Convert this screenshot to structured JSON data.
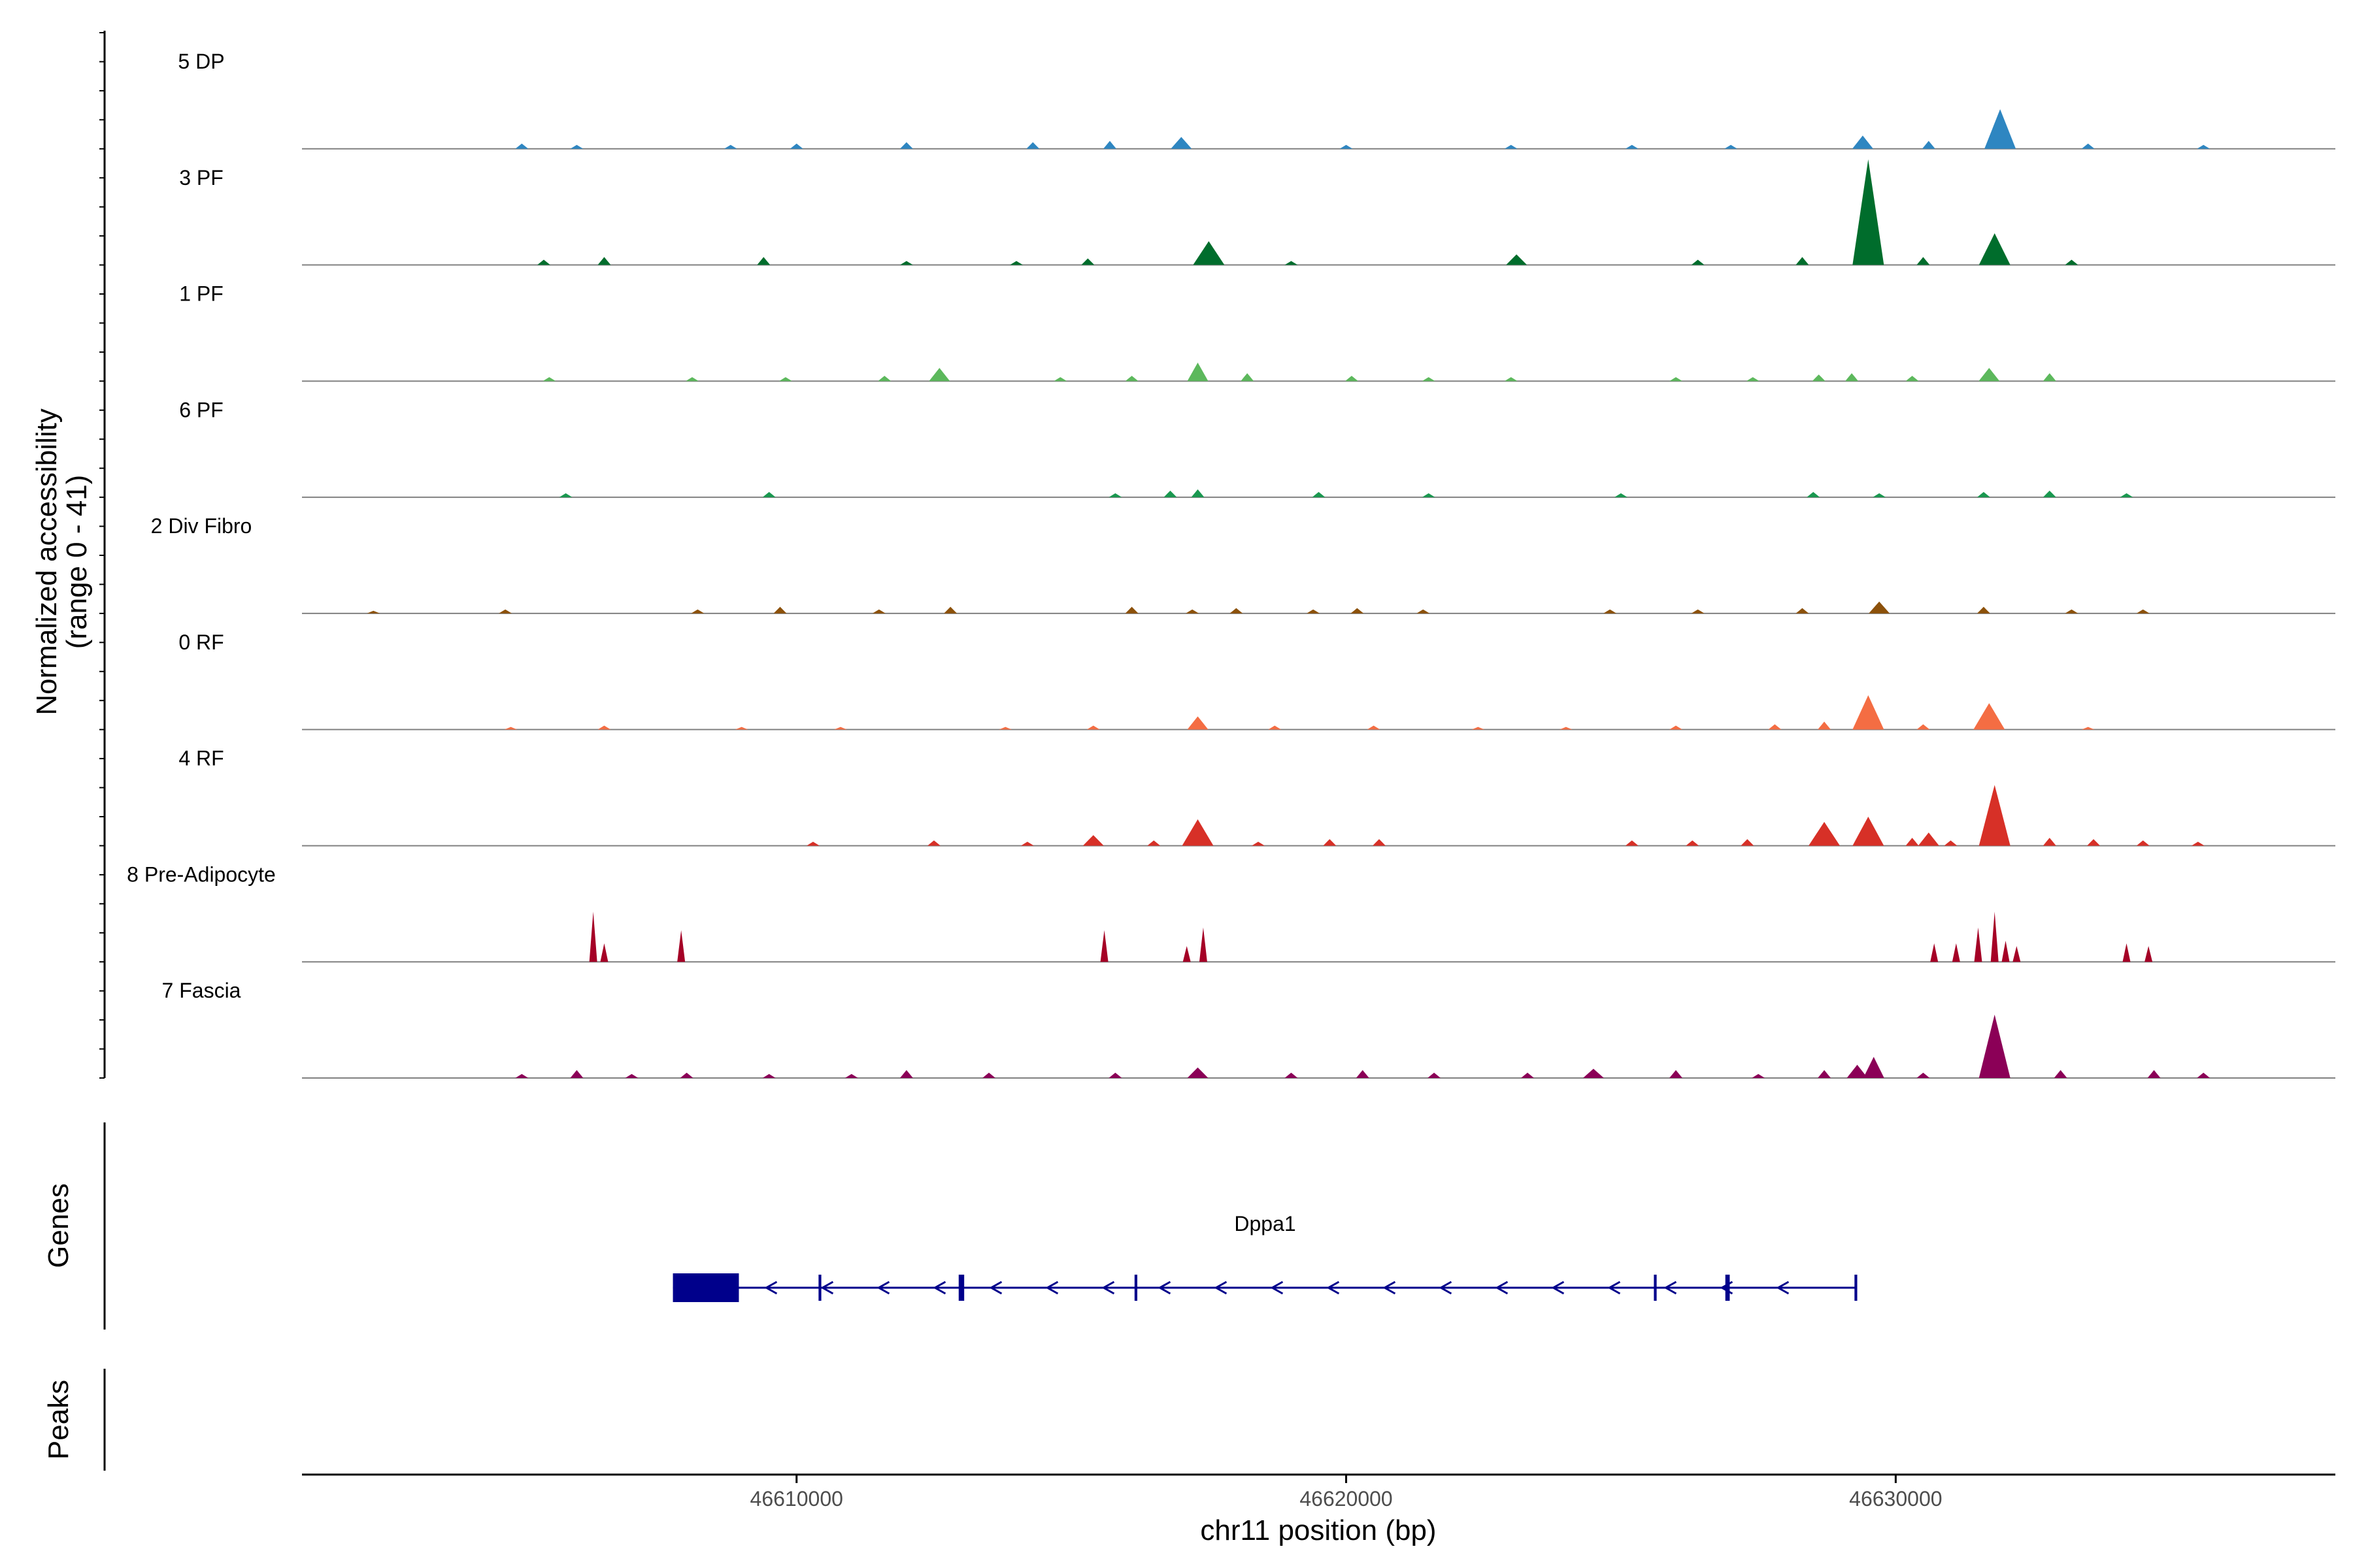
{
  "chart_data": {
    "type": "area",
    "title": "",
    "xlabel": "chr11 position (bp)",
    "ylabel": "Normalized accessibility",
    "ylabel_sub": "(range 0 - 41)",
    "y_range": [
      0,
      41
    ],
    "xlim": [
      46601000,
      46638000
    ],
    "x_ticks": [
      46610000,
      46620000,
      46630000
    ],
    "x_tick_labels": [
      "46610000",
      "46620000",
      "46630000"
    ],
    "tracks": [
      {
        "name": "5 DP",
        "color": "#2E86C1",
        "peaks": [
          [
            46605000,
            2
          ],
          [
            46606000,
            1.5
          ],
          [
            46608800,
            1.5
          ],
          [
            46610000,
            2
          ],
          [
            46612000,
            2.5
          ],
          [
            46614300,
            2.5
          ],
          [
            46615700,
            3
          ],
          [
            46617000,
            4.5
          ],
          [
            46620000,
            1.5
          ],
          [
            46623000,
            1.5
          ],
          [
            46625200,
            1.5
          ],
          [
            46627000,
            1.5
          ],
          [
            46629400,
            5
          ],
          [
            46630600,
            3
          ],
          [
            46631900,
            15
          ],
          [
            46633500,
            2
          ],
          [
            46635600,
            1.5
          ]
        ]
      },
      {
        "name": "3 PF",
        "color": "#006D2C",
        "peaks": [
          [
            46605400,
            2
          ],
          [
            46606500,
            3
          ],
          [
            46609400,
            3
          ],
          [
            46612000,
            1.5
          ],
          [
            46614000,
            1.5
          ],
          [
            46615300,
            2.5
          ],
          [
            46617500,
            9
          ],
          [
            46619000,
            1.5
          ],
          [
            46623100,
            4
          ],
          [
            46626400,
            2
          ],
          [
            46628300,
            3
          ],
          [
            46629500,
            40
          ],
          [
            46630500,
            3
          ],
          [
            46631800,
            12
          ],
          [
            46633200,
            2
          ]
        ]
      },
      {
        "name": "1 PF",
        "color": "#5CB85C",
        "peaks": [
          [
            46605500,
            1.5
          ],
          [
            46608100,
            1.5
          ],
          [
            46609800,
            1.5
          ],
          [
            46611600,
            2
          ],
          [
            46612600,
            5
          ],
          [
            46614800,
            1.5
          ],
          [
            46616100,
            2
          ],
          [
            46617300,
            7
          ],
          [
            46618200,
            3
          ],
          [
            46620100,
            2
          ],
          [
            46621500,
            1.5
          ],
          [
            46623000,
            1.5
          ],
          [
            46626000,
            1.5
          ],
          [
            46627400,
            1.5
          ],
          [
            46628600,
            2.5
          ],
          [
            46629200,
            3
          ],
          [
            46630300,
            2
          ],
          [
            46631700,
            5
          ],
          [
            46632800,
            3
          ]
        ]
      },
      {
        "name": "6 PF",
        "color": "#1A9850",
        "peaks": [
          [
            46605800,
            1.5
          ],
          [
            46609500,
            2
          ],
          [
            46615800,
            1.5
          ],
          [
            46616800,
            2.5
          ],
          [
            46617300,
            3
          ],
          [
            46619500,
            2
          ],
          [
            46621500,
            1.5
          ],
          [
            46625000,
            1.5
          ],
          [
            46628500,
            2
          ],
          [
            46629700,
            1.5
          ],
          [
            46631600,
            2
          ],
          [
            46632800,
            2.5
          ],
          [
            46634200,
            1.5
          ]
        ]
      },
      {
        "name": "2 Div Fibro",
        "color": "#8C510A",
        "peaks": [
          [
            46602300,
            1
          ],
          [
            46604700,
            1.5
          ],
          [
            46608200,
            1.5
          ],
          [
            46609700,
            2.5
          ],
          [
            46611500,
            1.5
          ],
          [
            46612800,
            2.5
          ],
          [
            46616100,
            2.5
          ],
          [
            46617200,
            1.5
          ],
          [
            46618000,
            2
          ],
          [
            46619400,
            1.5
          ],
          [
            46620200,
            2
          ],
          [
            46621400,
            1.5
          ],
          [
            46624800,
            1.5
          ],
          [
            46626400,
            1.5
          ],
          [
            46628300,
            2
          ],
          [
            46629700,
            4.5
          ],
          [
            46631600,
            2.5
          ],
          [
            46633200,
            1.5
          ],
          [
            46634500,
            1.5
          ]
        ]
      },
      {
        "name": "0 RF",
        "color": "#F46D43",
        "peaks": [
          [
            46604800,
            1
          ],
          [
            46606500,
            1.5
          ],
          [
            46609000,
            1
          ],
          [
            46610800,
            1
          ],
          [
            46613800,
            1
          ],
          [
            46615400,
            1.5
          ],
          [
            46617300,
            5
          ],
          [
            46618700,
            1.5
          ],
          [
            46620500,
            1.5
          ],
          [
            46622400,
            1
          ],
          [
            46624000,
            1
          ],
          [
            46626000,
            1.5
          ],
          [
            46627800,
            2
          ],
          [
            46628700,
            3
          ],
          [
            46629500,
            13
          ],
          [
            46630500,
            2
          ],
          [
            46631700,
            10
          ],
          [
            46633500,
            1
          ]
        ]
      },
      {
        "name": "4 RF",
        "color": "#D73027",
        "peaks": [
          [
            46610300,
            1.5
          ],
          [
            46612500,
            2
          ],
          [
            46614200,
            1.5
          ],
          [
            46615400,
            4
          ],
          [
            46616500,
            2
          ],
          [
            46617300,
            10
          ],
          [
            46618400,
            1.5
          ],
          [
            46619700,
            2.5
          ],
          [
            46620600,
            2.5
          ],
          [
            46625200,
            2
          ],
          [
            46626300,
            2
          ],
          [
            46627300,
            2.5
          ],
          [
            46628700,
            9
          ],
          [
            46629500,
            11
          ],
          [
            46630300,
            3
          ],
          [
            46630600,
            5
          ],
          [
            46631000,
            2
          ],
          [
            46631800,
            23
          ],
          [
            46632800,
            3
          ],
          [
            46633600,
            2.5
          ],
          [
            46634500,
            2
          ],
          [
            46635500,
            1.5
          ]
        ]
      },
      {
        "name": "8 Pre-Adipocyte",
        "color": "#A50026",
        "peaks": [
          [
            46606300,
            19
          ],
          [
            46606500,
            7
          ],
          [
            46607900,
            12
          ],
          [
            46615600,
            12
          ],
          [
            46617100,
            6
          ],
          [
            46617400,
            13
          ],
          [
            46630700,
            7
          ],
          [
            46631100,
            7
          ],
          [
            46631500,
            13
          ],
          [
            46631800,
            19
          ],
          [
            46632000,
            8
          ],
          [
            46632200,
            6
          ],
          [
            46634200,
            7
          ],
          [
            46634600,
            6
          ]
        ]
      },
      {
        "name": "7 Fascia",
        "color": "#8B0057",
        "peaks": [
          [
            46605000,
            1.5
          ],
          [
            46606000,
            3
          ],
          [
            46607000,
            1.5
          ],
          [
            46608000,
            2
          ],
          [
            46609500,
            1.5
          ],
          [
            46611000,
            1.5
          ],
          [
            46612000,
            3
          ],
          [
            46613500,
            2
          ],
          [
            46615800,
            2
          ],
          [
            46617300,
            4
          ],
          [
            46619000,
            2
          ],
          [
            46620300,
            3
          ],
          [
            46621600,
            2
          ],
          [
            46623300,
            2
          ],
          [
            46624500,
            3.5
          ],
          [
            46626000,
            3
          ],
          [
            46627500,
            1.5
          ],
          [
            46628700,
            3
          ],
          [
            46629300,
            5
          ],
          [
            46629600,
            8
          ],
          [
            46630500,
            2
          ],
          [
            46631800,
            24
          ],
          [
            46633000,
            3
          ],
          [
            46634700,
            3
          ],
          [
            46635600,
            2
          ]
        ]
      }
    ],
    "genes_label": "Genes",
    "gene": {
      "name": "Dppa1",
      "color": "#00008B",
      "strand": "-",
      "start": 46607750,
      "end": 46629300,
      "exons": [
        [
          46607750,
          46608950
        ],
        [
          46610400,
          46610450
        ],
        [
          46612950,
          46613050
        ],
        [
          46616150,
          46616200
        ],
        [
          46625600,
          46625650
        ],
        [
          46626900,
          46626980
        ],
        [
          46629250,
          46629300
        ]
      ]
    },
    "peaks_label": "Peaks",
    "peaks": []
  }
}
